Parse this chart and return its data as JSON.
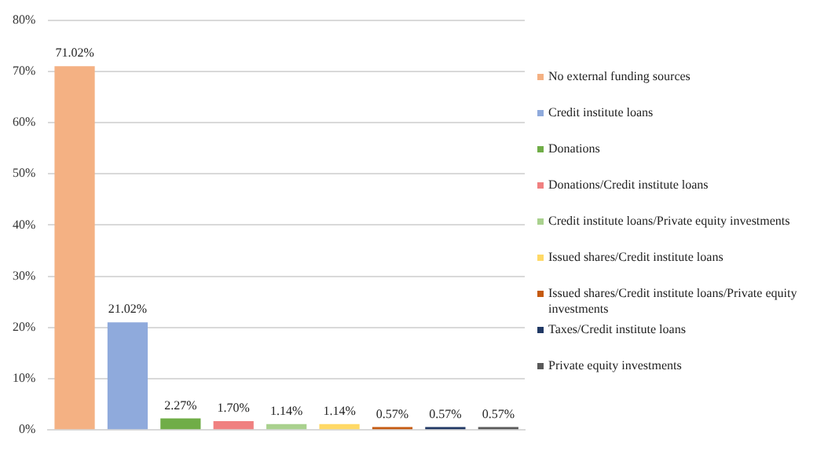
{
  "chart_data": {
    "type": "bar",
    "categories": [
      null,
      null,
      null,
      null,
      null,
      null,
      null,
      null,
      null
    ],
    "series": [
      {
        "name": "No external funding sources",
        "color": "#f4b183",
        "values": [
          71.02,
          null,
          null,
          null,
          null,
          null,
          null,
          null,
          null
        ]
      },
      {
        "name": "Credit institute loans",
        "color": "#8faadc",
        "values": [
          null,
          21.02,
          null,
          null,
          null,
          null,
          null,
          null,
          null
        ]
      },
      {
        "name": "Donations",
        "color": "#70ad47",
        "values": [
          null,
          null,
          2.27,
          null,
          null,
          null,
          null,
          null,
          null
        ]
      },
      {
        "name": "Donations/Credit institute loans",
        "color": "#f08080",
        "values": [
          null,
          null,
          null,
          1.7,
          null,
          null,
          null,
          null,
          null
        ]
      },
      {
        "name": "Credit institute loans/Private equity investments",
        "color": "#a9d18e",
        "values": [
          null,
          null,
          null,
          null,
          1.14,
          null,
          null,
          null,
          null
        ]
      },
      {
        "name": "Issued shares/Credit institute loans",
        "color": "#ffd966",
        "values": [
          null,
          null,
          null,
          null,
          null,
          1.14,
          null,
          null,
          null
        ]
      },
      {
        "name": "Issued shares/Credit institute loans/Private equity investments",
        "color": "#c55a11",
        "values": [
          null,
          null,
          null,
          null,
          null,
          null,
          0.57,
          null,
          null
        ]
      },
      {
        "name": "Taxes/Credit institute loans",
        "color": "#203864",
        "values": [
          null,
          null,
          null,
          null,
          null,
          null,
          null,
          0.57,
          null
        ]
      },
      {
        "name": "Private equity investments",
        "color": "#595959",
        "values": [
          null,
          null,
          null,
          null,
          null,
          null,
          null,
          null,
          0.57
        ]
      }
    ],
    "value_labels": [
      "71.02%",
      "21.02%",
      "2.27%",
      "1.70%",
      "1.14%",
      "1.14%",
      "0.57%",
      "0.57%",
      "0.57%"
    ],
    "ylim": [
      0,
      80
    ],
    "yticks": [
      {
        "value": 0,
        "label": "0%"
      },
      {
        "value": 10,
        "label": "10%"
      },
      {
        "value": 20,
        "label": "20%"
      },
      {
        "value": 30,
        "label": "30%"
      },
      {
        "value": 40,
        "label": "40%"
      },
      {
        "value": 50,
        "label": "50%"
      },
      {
        "value": 60,
        "label": "60%"
      },
      {
        "value": 70,
        "label": "70%"
      },
      {
        "value": 80,
        "label": "80%"
      }
    ],
    "grid": "y",
    "legend": "right"
  }
}
